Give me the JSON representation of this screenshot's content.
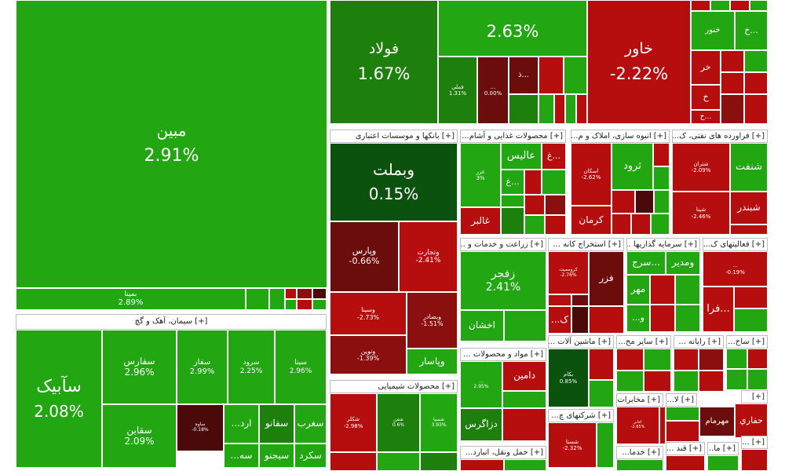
{
  "chart_data": {
    "type": "treemap",
    "sectors": [
      {
        "label": "[+] سیمان، آهک و گچ"
      },
      {
        "label": "[+] بانکها و موسسات اعتباری"
      },
      {
        "label": "[+] محصولات غذایی و آشام..."
      },
      {
        "label": "[+] انبوه سازی، املاک و م..."
      },
      {
        "label": "[+] فراورده های نفتی، ک..."
      },
      {
        "label": "[+] زراعت و خدمات و ..."
      },
      {
        "label": "[+] استخراج کانه ..."
      },
      {
        "label": "[+] سرمایه گذاریها ..."
      },
      {
        "label": "[+] فعالیتهای ک..."
      },
      {
        "label": "[+] محصولات شیمیایی"
      },
      {
        "label": "[+] مواد و محصولات ..."
      },
      {
        "label": "[+] ماشین آلات ..."
      },
      {
        "label": "[+] سایر مح..."
      },
      {
        "label": "[+] رایانه ..."
      },
      {
        "label": "[+] ساخ..."
      },
      {
        "label": "[+] شرکتهای چ..."
      },
      {
        "label": "[+] مخابرات ..."
      },
      {
        "label": "[+] حمل ونقل، انبارد..."
      },
      {
        "label": "[+] خدما..."
      },
      {
        "label": "[+] قند ..."
      },
      {
        "label": "[+] ما..."
      },
      {
        "label": "[+]"
      },
      {
        "label": "[+] لا..."
      },
      {
        "label": "[+] ..."
      }
    ],
    "tiles": [
      {
        "symbol": "مبین",
        "change": "2.91%",
        "color": "#22a611"
      },
      {
        "symbol": "بمپنا",
        "change": "2.89%",
        "color": "#22a611"
      },
      {
        "symbol": "فولاد",
        "change": "1.67%",
        "color": "#1e800c"
      },
      {
        "symbol": "",
        "change": "2.63%",
        "color": "#22a611"
      },
      {
        "symbol": "خاور",
        "change": "-2.22%",
        "color": "#b60e0e"
      },
      {
        "symbol": "خنور",
        "change": "",
        "color": "#22a611"
      },
      {
        "symbol": "خ...",
        "change": "",
        "color": "#22a611"
      },
      {
        "symbol": "خر",
        "change": "",
        "color": "#b60e0e"
      },
      {
        "symbol": "خ",
        "change": "",
        "color": "#b60e0e"
      },
      {
        "symbol": "خ...",
        "change": "",
        "color": "#b60e0e"
      },
      {
        "symbol": "فملی",
        "change": "1.31%",
        "color": "#1e800c"
      },
      {
        "symbol": "...",
        "change": "0.00%",
        "color": "#6b0d0d"
      },
      {
        "symbol": "ذ...",
        "change": "",
        "color": "#6b0d0d"
      },
      {
        "symbol": "وبملت",
        "change": "0.15%",
        "color": "#0c520f"
      },
      {
        "symbol": "وپارس",
        "change": "-0.66%",
        "color": "#6b0d0d"
      },
      {
        "symbol": "وتجارت",
        "change": "-2.41%",
        "color": "#b60e0e"
      },
      {
        "symbol": "وسینا",
        "change": "-2.73%",
        "color": "#b60e0e"
      },
      {
        "symbol": "وبصادر",
        "change": "-1.51%",
        "color": "#8b0f0f"
      },
      {
        "symbol": "ونوین",
        "change": "-1.39%",
        "color": "#8b0f0f"
      },
      {
        "symbol": "وپاسار",
        "change": "",
        "color": "#22a611"
      },
      {
        "symbol": "سآبیک",
        "change": "2.08%",
        "color": "#22a611"
      },
      {
        "symbol": "سفارس",
        "change": "2.96%",
        "color": "#22a611"
      },
      {
        "symbol": "سفار",
        "change": "2.99%",
        "color": "#22a611"
      },
      {
        "symbol": "سرود",
        "change": "2.25%",
        "color": "#22a611"
      },
      {
        "symbol": "سینا",
        "change": "2.96%",
        "color": "#22a611"
      },
      {
        "symbol": "سقاین",
        "change": "2.09%",
        "color": "#22a611"
      },
      {
        "symbol": "ساوه",
        "change": "-0.18%",
        "color": "#4a0a0a"
      },
      {
        "symbol": "...ارد",
        "change": "",
        "color": "#22a611"
      },
      {
        "symbol": "سفانو",
        "change": "",
        "color": "#1e800c"
      },
      {
        "symbol": "سغرب",
        "change": "",
        "color": "#22a611"
      },
      {
        "symbol": "سیجنو",
        "change": "",
        "color": "#22a611"
      },
      {
        "symbol": "سکرد",
        "change": "",
        "color": "#22a611"
      },
      {
        "symbol": "...سه",
        "change": "",
        "color": "#22a611"
      },
      {
        "symbol": "غزر",
        "change": "3%",
        "color": "#22a611"
      },
      {
        "symbol": "عالیس",
        "change": "",
        "color": "#22a611"
      },
      {
        "symbol": "غ...",
        "change": "",
        "color": "#b60e0e"
      },
      {
        "symbol": "غ...",
        "change": "",
        "color": "#22a611"
      },
      {
        "symbol": "غالبر",
        "change": "",
        "color": "#b60e0e"
      },
      {
        "symbol": "اسکان",
        "change": "-2.62%",
        "color": "#b60e0e"
      },
      {
        "symbol": "ثرود",
        "change": "",
        "color": "#22a611"
      },
      {
        "symbol": "کرمان",
        "change": "",
        "color": "#b60e0e"
      },
      {
        "symbol": "شتران",
        "change": "-2.09%",
        "color": "#b60e0e"
      },
      {
        "symbol": "شنفت",
        "change": "",
        "color": "#22a611"
      },
      {
        "symbol": "شبندر",
        "change": "",
        "color": "#b60e0e"
      },
      {
        "symbol": "شپنا",
        "change": "-2.46%",
        "color": "#b60e0e"
      },
      {
        "symbol": "زفجر",
        "change": "2.41%",
        "color": "#22a611"
      },
      {
        "symbol": "اخشان",
        "change": "",
        "color": "#22a611"
      },
      {
        "symbol": "کروممیت",
        "change": "-2.76%",
        "color": "#b60e0e"
      },
      {
        "symbol": "فزر",
        "change": "",
        "color": "#6b0d0d"
      },
      {
        "symbol": "...ک",
        "change": "",
        "color": "#b60e0e"
      },
      {
        "symbol": "سرج...",
        "change": "",
        "color": "#22a611"
      },
      {
        "symbol": "ومدیر",
        "change": "",
        "color": "#22a611"
      },
      {
        "symbol": "مهر",
        "change": "",
        "color": "#22a611"
      },
      {
        "symbol": "...و",
        "change": "",
        "color": "#22a611"
      },
      {
        "symbol": "...",
        "change": "-0.19%",
        "color": "#b60e0e"
      },
      {
        "symbol": "فرا...",
        "change": "",
        "color": "#b60e0e"
      },
      {
        "symbol": "شکلر",
        "change": "-2.98%",
        "color": "#b60e0e"
      },
      {
        "symbol": "شفن",
        "change": "0.6%",
        "color": "#1e800c"
      },
      {
        "symbol": "شسپا",
        "change": "3.93%",
        "color": "#22a611"
      },
      {
        "symbol": "دامین",
        "change": "",
        "color": "#b60e0e"
      },
      {
        "symbol": "...",
        "change": "2.95%",
        "color": "#22a611"
      },
      {
        "symbol": "دزاگرس",
        "change": "",
        "color": "#1e800c"
      },
      {
        "symbol": "بکام",
        "change": "0.85%",
        "color": "#0c520f"
      },
      {
        "symbol": "شستا",
        "change": "-2.32%",
        "color": "#b60e0e"
      },
      {
        "symbol": "اخابر",
        "change": "-2.65%",
        "color": "#b60e0e"
      },
      {
        "symbol": "مهرمام",
        "change": "",
        "color": "#6b0d0d"
      },
      {
        "symbol": "حفاري",
        "change": "",
        "color": "#b60e0e"
      }
    ]
  }
}
